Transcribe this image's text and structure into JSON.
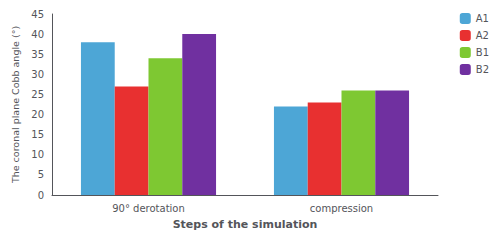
{
  "chart_data": {
    "type": "bar",
    "xlabel": "Steps of the simulation",
    "ylabel": "The coronal plane Cobb angle (°)",
    "categories": [
      "90° derotation",
      "compression"
    ],
    "series": [
      {
        "name": "A1",
        "color": "#4da6d6",
        "values": [
          38,
          22
        ]
      },
      {
        "name": "A2",
        "color": "#e83030",
        "values": [
          27,
          23
        ]
      },
      {
        "name": "B1",
        "color": "#7ec832",
        "values": [
          34,
          26
        ]
      },
      {
        "name": "B2",
        "color": "#7030A0",
        "values": [
          40,
          26
        ]
      }
    ],
    "ylim": [
      0,
      45
    ],
    "yticks": [
      0,
      5,
      10,
      15,
      20,
      25,
      30,
      35,
      40,
      45
    ],
    "grid": false,
    "legend": "upper right"
  }
}
